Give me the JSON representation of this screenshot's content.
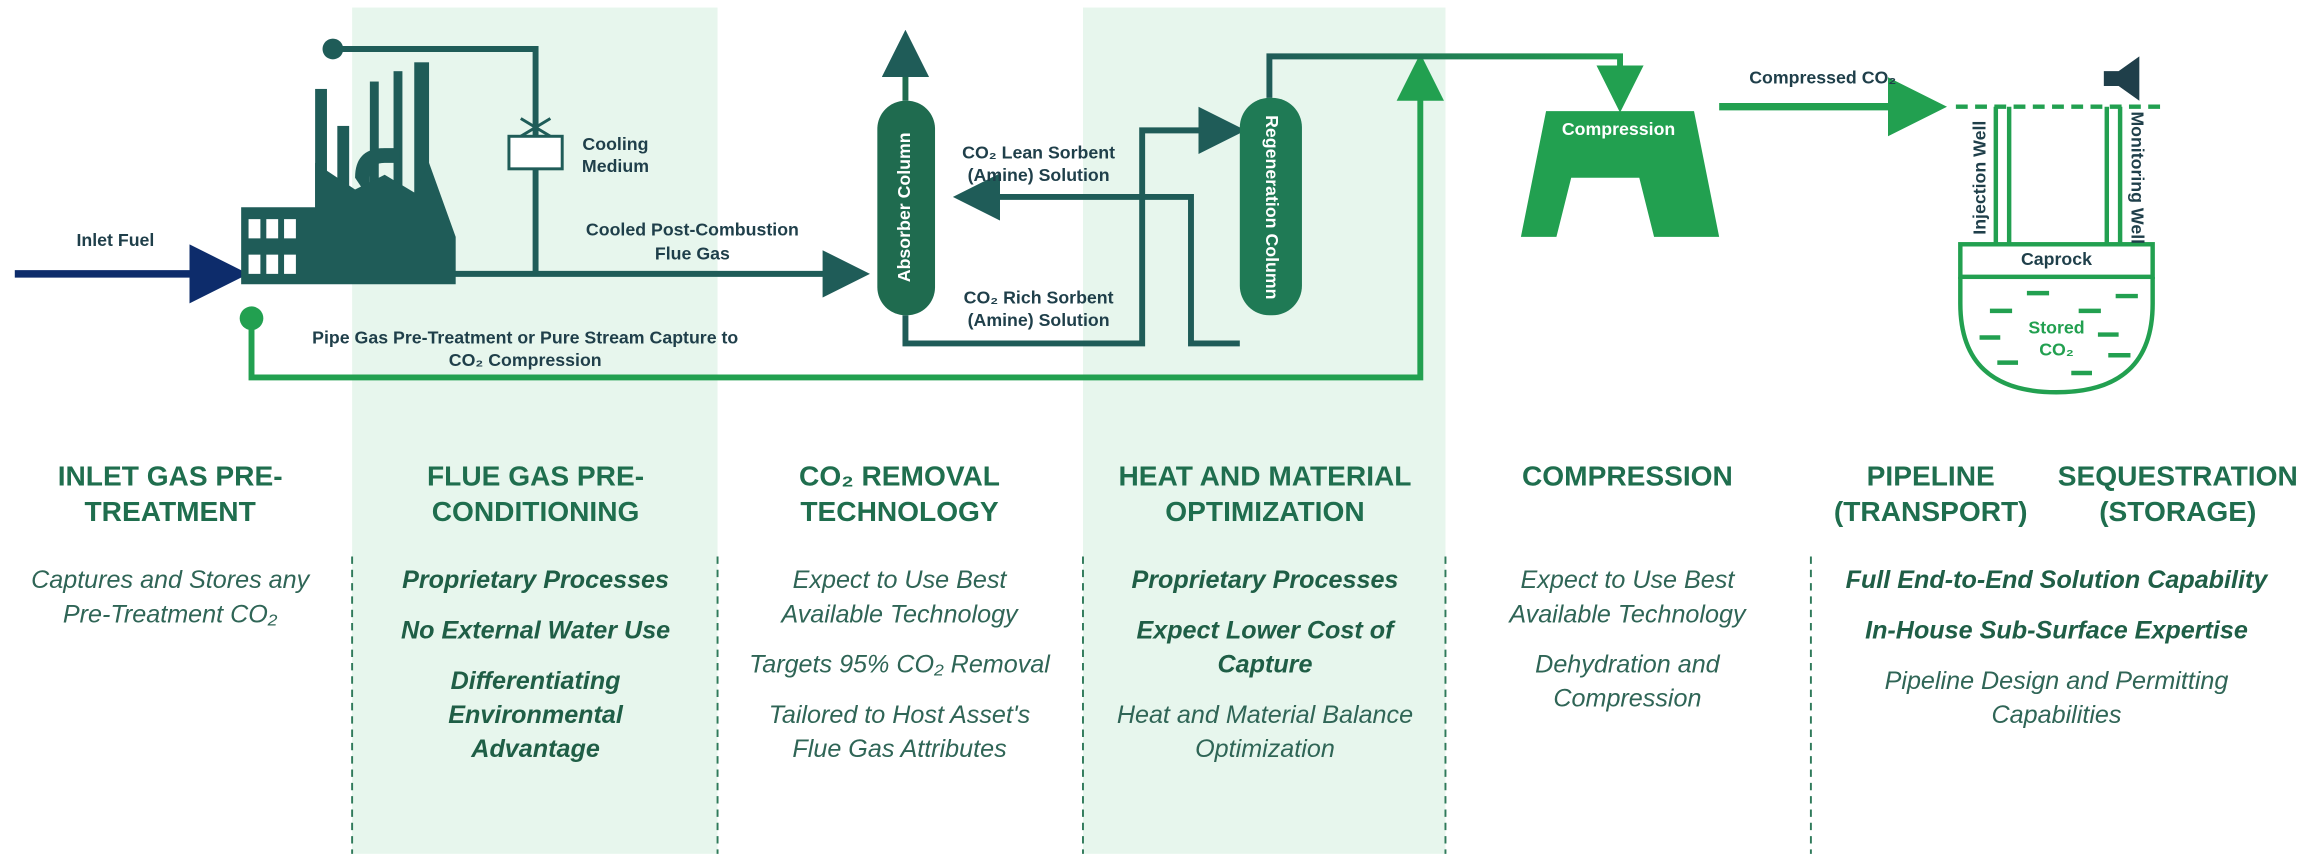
{
  "diagram": {
    "inlet_fuel": "Inlet Fuel",
    "cooling_medium": [
      "Cooling",
      "Medium"
    ],
    "cooled_flue_gas": [
      "Cooled Post-Combustion",
      "Flue Gas"
    ],
    "absorber_column": "Absorber Column",
    "regeneration_column": "Regeneration Column",
    "lean_sorbent": [
      "CO₂ Lean Sorbent",
      "(Amine) Solution"
    ],
    "rich_sorbent": [
      "CO₂ Rich Sorbent",
      "(Amine) Solution"
    ],
    "pipe_gas": [
      "Pipe Gas Pre-Treatment or Pure Stream Capture to",
      "CO₂ Compression"
    ],
    "compression": "Compression",
    "compressed_co2": "Compressed CO₂",
    "injection_well": "Injection Well",
    "monitoring_well": "Monitoring Well",
    "caprock": "Caprock",
    "stored_co2": [
      "Stored",
      "CO₂"
    ]
  },
  "stages": [
    [
      "INLET GAS PRE-",
      "TREATMENT"
    ],
    [
      "FLUE GAS PRE-",
      "CONDITIONING"
    ],
    [
      "CO₂ REMOVAL",
      "TECHNOLOGY"
    ],
    [
      "HEAT AND MATERIAL",
      "OPTIMIZATION"
    ],
    [
      "COMPRESSION"
    ],
    [
      "PIPELINE",
      "(TRANSPORT)"
    ],
    [
      "SEQUESTRATION",
      "(STORAGE)"
    ]
  ],
  "descriptions": [
    [
      {
        "lines": [
          "Captures and Stores any",
          "Pre-Treatment CO₂"
        ],
        "emphasis": false
      }
    ],
    [
      {
        "lines": [
          "Proprietary Processes"
        ],
        "emphasis": true
      },
      {
        "lines": [
          "No External Water Use"
        ],
        "emphasis": true
      },
      {
        "lines": [
          "Differentiating",
          "Environmental",
          "Advantage"
        ],
        "emphasis": true
      }
    ],
    [
      {
        "lines": [
          "Expect to Use Best",
          "Available Technology"
        ],
        "emphasis": false
      },
      {
        "lines": [
          "Targets 95% CO₂ Removal"
        ],
        "emphasis": false
      },
      {
        "lines": [
          "Tailored to Host Asset's",
          "Flue Gas Attributes"
        ],
        "emphasis": false
      }
    ],
    [
      {
        "lines": [
          "Proprietary Processes"
        ],
        "emphasis": true
      },
      {
        "lines": [
          "Expect Lower Cost of",
          "Capture"
        ],
        "emphasis": true
      },
      {
        "lines": [
          "Heat and Material Balance",
          "Optimization"
        ],
        "emphasis": false
      }
    ],
    [
      {
        "lines": [
          "Expect to Use Best",
          "Available Technology"
        ],
        "emphasis": false
      },
      {
        "lines": [
          "Dehydration and",
          "Compression"
        ],
        "emphasis": false
      }
    ],
    [
      {
        "lines": [
          "Full End-to-End Solution Capability"
        ],
        "emphasis": true
      },
      {
        "lines": [
          "In-House Sub-Surface Expertise"
        ],
        "emphasis": true
      },
      {
        "lines": [
          "Pipeline Design and Permitting",
          "Capabilities"
        ],
        "emphasis": false
      }
    ]
  ]
}
